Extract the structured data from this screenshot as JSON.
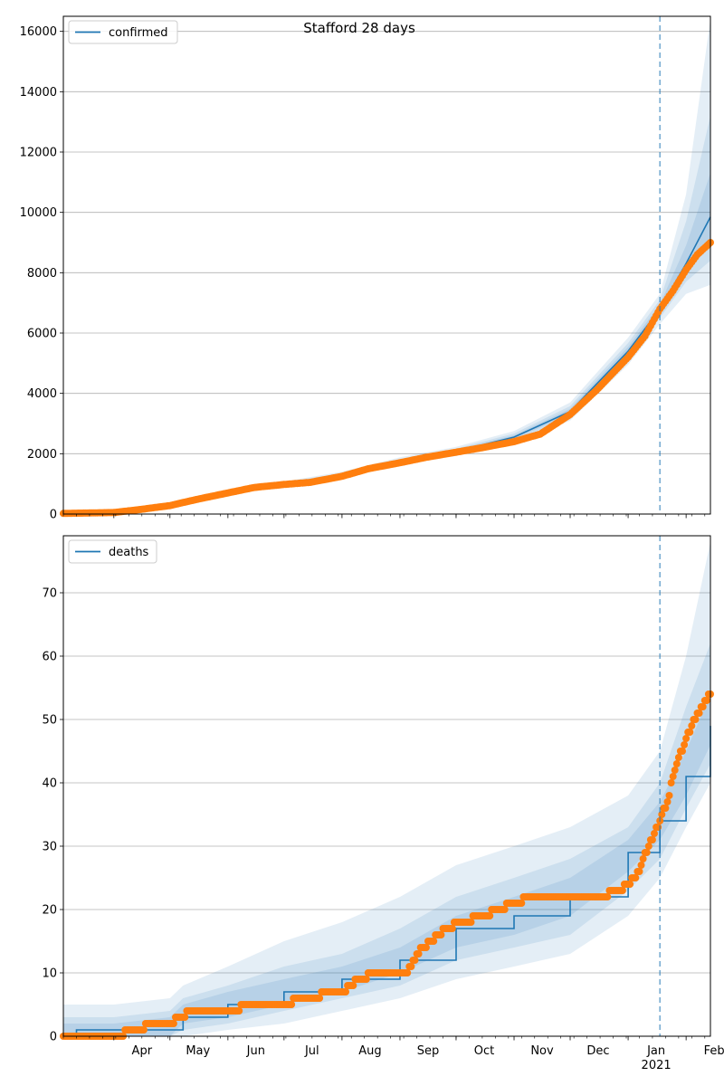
{
  "chart_data": [
    {
      "type": "line",
      "title": "Stafford 28 days",
      "legend": {
        "label": "confirmed",
        "placement": "top-left"
      },
      "ylim": [
        0,
        16500
      ],
      "yticks": [
        0,
        2000,
        4000,
        6000,
        8000,
        10000,
        12000,
        14000,
        16000
      ],
      "xlim": [
        "2020-03-05",
        "2021-02-14"
      ],
      "forecast_start": "2021-01-18",
      "grid": "y",
      "colors": {
        "model": "#1f77b4",
        "observed": "#ff7f0e",
        "band": "#1f77b4"
      },
      "model": {
        "x": [
          "2020-03-05",
          "2020-04-01",
          "2020-05-01",
          "2020-06-01",
          "2020-07-01",
          "2020-08-01",
          "2020-09-01",
          "2020-10-01",
          "2020-11-01",
          "2020-12-01",
          "2021-01-01",
          "2021-01-18",
          "2021-02-01",
          "2021-02-14"
        ],
        "y": [
          20,
          60,
          300,
          750,
          1000,
          1300,
          1750,
          2080,
          2550,
          3400,
          5400,
          6800,
          8300,
          9850
        ],
        "bands": [
          {
            "lo": [
              20,
              55,
              270,
              680,
              920,
              1200,
              1620,
              1930,
              2350,
              3100,
              4950,
              6300,
              7300,
              7600
            ],
            "hi": [
              20,
              65,
              330,
              820,
              1080,
              1400,
              1880,
              2230,
              2750,
              3700,
              5850,
              7300,
              10600,
              16400
            ]
          },
          {
            "lo": [
              20,
              57,
              280,
              700,
              950,
              1240,
              1670,
              1990,
              2430,
              3220,
              5130,
              6500,
              7700,
              8400
            ],
            "hi": [
              20,
              63,
              320,
              800,
              1050,
              1360,
              1830,
              2170,
              2670,
              3580,
              5670,
              7100,
              9700,
              13200
            ]
          },
          {
            "lo": [
              20,
              58,
              290,
              720,
              975,
              1270,
              1710,
              2030,
              2490,
              3310,
              5260,
              6650,
              8000,
              9000
            ],
            "hi": [
              20,
              62,
              310,
              780,
              1025,
              1330,
              1790,
              2130,
              2610,
              3490,
              5540,
              6950,
              8900,
              11300
            ]
          }
        ]
      },
      "observed": {
        "x": [
          "2020-03-05",
          "2020-04-01",
          "2020-04-15",
          "2020-05-01",
          "2020-05-15",
          "2020-06-01",
          "2020-06-15",
          "2020-07-01",
          "2020-07-15",
          "2020-08-01",
          "2020-08-15",
          "2020-09-01",
          "2020-09-15",
          "2020-10-01",
          "2020-10-15",
          "2020-11-01",
          "2020-11-15",
          "2020-12-01",
          "2020-12-15",
          "2021-01-01",
          "2021-01-10",
          "2021-01-18",
          "2021-01-25",
          "2021-02-01",
          "2021-02-07",
          "2021-02-14"
        ],
        "y": [
          20,
          50,
          150,
          280,
          480,
          700,
          880,
          980,
          1050,
          1250,
          1500,
          1700,
          1880,
          2050,
          2200,
          2400,
          2650,
          3300,
          4100,
          5200,
          5900,
          6800,
          7400,
          8100,
          8600,
          9000
        ]
      }
    },
    {
      "type": "line",
      "legend": {
        "label": "deaths",
        "placement": "top-left"
      },
      "ylim": [
        0,
        79
      ],
      "yticks": [
        0,
        10,
        20,
        30,
        40,
        50,
        60,
        70
      ],
      "xlim": [
        "2020-03-05",
        "2021-02-14"
      ],
      "x_tick_labels": [
        "Apr",
        "May",
        "Jun",
        "Jul",
        "Aug",
        "Sep",
        "Oct",
        "Nov",
        "Dec",
        "Jan\n2021",
        "Feb"
      ],
      "forecast_start": "2021-01-18",
      "grid": "y",
      "colors": {
        "model": "#1f77b4",
        "observed": "#ff7f0e",
        "band": "#1f77b4"
      },
      "model": {
        "x": [
          "2020-03-05",
          "2020-03-12",
          "2020-04-01",
          "2020-05-01",
          "2020-05-08",
          "2020-06-01",
          "2020-07-01",
          "2020-08-01",
          "2020-09-01",
          "2020-10-01",
          "2020-11-01",
          "2020-12-01",
          "2021-01-01",
          "2021-01-18",
          "2021-02-01",
          "2021-02-14"
        ],
        "y": [
          0,
          1,
          1,
          1,
          3,
          5,
          7,
          9,
          12,
          17,
          19,
          22,
          29,
          34,
          41,
          49
        ],
        "bands": [
          {
            "lo": [
              0,
              0,
              0,
              0,
              0,
              1,
              2,
              4,
              6,
              9,
              11,
              13,
              19,
              25,
              33,
              40
            ],
            "hi": [
              5,
              5,
              5,
              6,
              8,
              11,
              15,
              18,
              22,
              27,
              30,
              33,
              38,
              45,
              60,
              78
            ]
          },
          {
            "lo": [
              0,
              0,
              0,
              0,
              1,
              2,
              4,
              6,
              8,
              12,
              14,
              16,
              23,
              28,
              36,
              43
            ],
            "hi": [
              3,
              3,
              3,
              4,
              6,
              8,
              11,
              13,
              17,
              22,
              25,
              28,
              33,
              40,
              52,
              62
            ]
          },
          {
            "lo": [
              0,
              0,
              0,
              0,
              2,
              3,
              5,
              7,
              10,
              14,
              16,
              19,
              26,
              31,
              38,
              46
            ],
            "hi": [
              2,
              2,
              2,
              3,
              5,
              7,
              9,
              11,
              14,
              19,
              22,
              25,
              31,
              37,
              45,
              54
            ]
          }
        ]
      },
      "observed": {
        "x": [
          "2020-03-05",
          "2020-04-01",
          "2020-04-23",
          "2020-05-01",
          "2020-05-12",
          "2020-06-01",
          "2020-06-15",
          "2020-07-01",
          "2020-07-10",
          "2020-08-01",
          "2020-08-10",
          "2020-08-20",
          "2020-09-01",
          "2020-09-05",
          "2020-09-10",
          "2020-09-25",
          "2020-10-05",
          "2020-10-15",
          "2020-11-01",
          "2020-11-10",
          "2020-12-01",
          "2020-12-15",
          "2020-12-28",
          "2021-01-05",
          "2021-01-12",
          "2021-01-18",
          "2021-01-22",
          "2021-01-26",
          "2021-02-01",
          "2021-02-07",
          "2021-02-14"
        ],
        "y": [
          0,
          0,
          2,
          2,
          4,
          4,
          5,
          5,
          6,
          7,
          9,
          10,
          10,
          10,
          13,
          17,
          18,
          19,
          21,
          22,
          22,
          22,
          23,
          25,
          30,
          34,
          37,
          42,
          47,
          51,
          54
        ]
      }
    }
  ]
}
